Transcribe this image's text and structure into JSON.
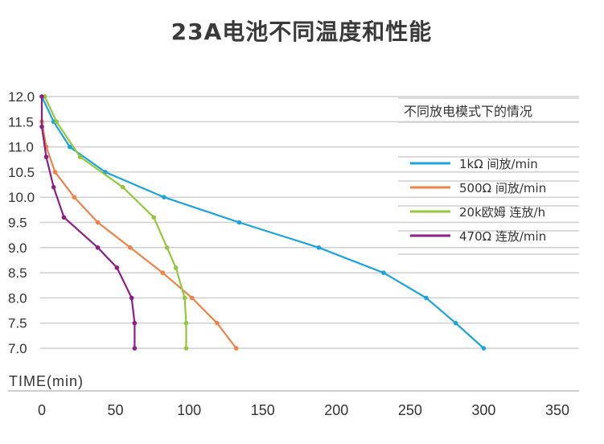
{
  "title": "23A电池不同温度和性能",
  "legend": {
    "title": "不同放电模式下的情况",
    "items": [
      {
        "label": "1kΩ 间放/min",
        "color": "#1aa3dc"
      },
      {
        "label": "500Ω 间放/min",
        "color": "#ee8248"
      },
      {
        "label": "20k欧姆 连放/h",
        "color": "#94c83c"
      },
      {
        "label": "470Ω 连放/min",
        "color": "#8e1e86"
      }
    ]
  },
  "axes": {
    "xlabel": "TIME(min)",
    "xticks": [
      "0",
      "50",
      "100",
      "150",
      "200",
      "250",
      "300",
      "350"
    ],
    "yticks": [
      "12.0",
      "11.5",
      "11.0",
      "10.5",
      "10.0",
      "9.5",
      "9.0",
      "8.5",
      "8.0",
      "7.5",
      "7.0"
    ]
  },
  "chart_data": {
    "type": "line",
    "title": "23A电池不同温度和性能",
    "xlabel": "TIME(min)",
    "ylabel": "",
    "xlim": [
      0,
      350
    ],
    "ylim": [
      7.0,
      12.0
    ],
    "grid": "horizontal",
    "legend_position": "upper right",
    "legend_title": "不同放电模式下的情况",
    "series": [
      {
        "name": "1kΩ 间放/min",
        "color": "#1aa3dc",
        "x": [
          0,
          8,
          19,
          43,
          83,
          134,
          188,
          232,
          261,
          281,
          300
        ],
        "y": [
          12.0,
          11.5,
          11.0,
          10.5,
          10.0,
          9.5,
          9.0,
          8.5,
          8.0,
          7.5,
          7.0
        ]
      },
      {
        "name": "500Ω 间放/min",
        "color": "#ee8248",
        "x": [
          0,
          3,
          9,
          22,
          38,
          60,
          82,
          102,
          119,
          132
        ],
        "y": [
          11.5,
          11.0,
          10.5,
          10.0,
          9.5,
          9.0,
          8.5,
          8.0,
          7.5,
          7.0
        ]
      },
      {
        "name": "20k欧姆 连放/h",
        "color": "#94c83c",
        "x": [
          2,
          10,
          26,
          55,
          76,
          85,
          91,
          97,
          98,
          98
        ],
        "y": [
          12.0,
          11.5,
          10.8,
          10.2,
          9.6,
          9.0,
          8.6,
          8.0,
          7.5,
          7.0
        ]
      },
      {
        "name": "470Ω 连放/min",
        "color": "#8e1e86",
        "x": [
          0,
          0,
          3,
          8,
          15,
          38,
          51,
          61,
          63,
          63
        ],
        "y": [
          12.0,
          11.4,
          10.8,
          10.2,
          9.6,
          9.0,
          8.6,
          8.0,
          7.5,
          7.0
        ]
      }
    ]
  }
}
